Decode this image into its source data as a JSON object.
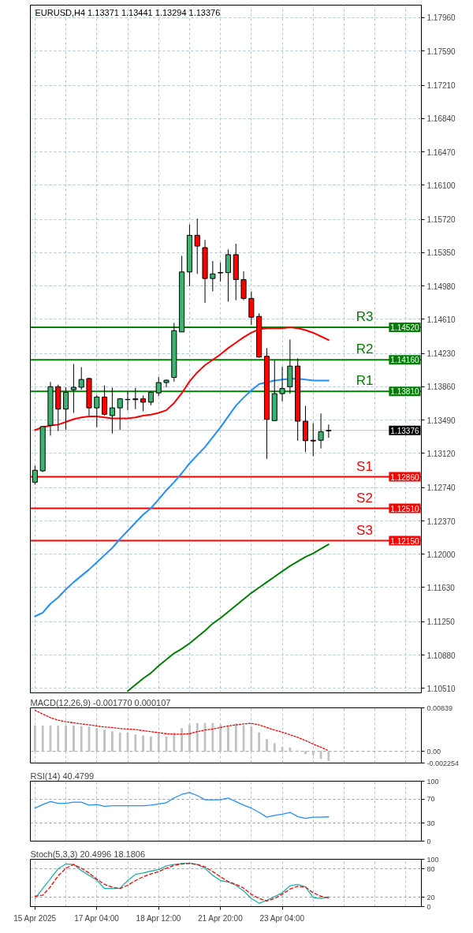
{
  "chart_data": [
    {
      "type": "candlestick",
      "title": "EURUSD,H4 1.13371 1.13441 1.13294 1.13376",
      "categories": [
        null,
        null,
        null,
        null,
        null,
        null,
        null,
        null,
        null,
        null,
        null,
        null,
        null,
        null,
        null,
        null,
        null,
        null,
        null,
        null,
        null,
        null,
        null,
        null,
        null,
        null,
        null,
        null,
        null,
        null,
        null,
        null,
        null,
        null,
        null,
        null,
        null,
        null,
        null
      ],
      "ohlc": [
        [
          1.128,
          1.12983,
          1.12774,
          1.12933
        ],
        [
          1.12926,
          1.13426,
          1.12912,
          1.13418
        ],
        [
          1.13432,
          1.13913,
          1.13317,
          1.13861
        ],
        [
          1.13861,
          1.13884,
          1.13369,
          1.13612
        ],
        [
          1.13612,
          1.13855,
          1.13383,
          1.13798
        ],
        [
          1.13827,
          1.14113,
          1.1357,
          1.13855
        ],
        [
          1.13855,
          1.14078,
          1.13827,
          1.13941
        ],
        [
          1.13952,
          1.1396,
          1.1354,
          1.13626
        ],
        [
          1.13626,
          1.13769,
          1.13412,
          1.13746
        ],
        [
          1.13746,
          1.13876,
          1.1354,
          1.13555
        ],
        [
          1.1354,
          1.1385,
          1.13341,
          1.13626
        ],
        [
          1.13626,
          1.13735,
          1.13383,
          1.13726
        ],
        [
          1.13717,
          1.13812,
          1.13598,
          1.1372
        ],
        [
          1.13726,
          1.13847,
          1.13612,
          1.13717
        ],
        [
          1.13726,
          1.13763,
          1.13589,
          1.13689
        ],
        [
          1.13689,
          1.13812,
          1.13655,
          1.13798
        ],
        [
          1.13792,
          1.1397,
          1.13755,
          1.13907
        ],
        [
          1.13907,
          1.13941,
          1.13855,
          1.13933
        ],
        [
          1.13964,
          1.1457,
          1.13918,
          1.14484
        ],
        [
          1.1447,
          1.15314,
          1.14467,
          1.15136
        ],
        [
          1.15136,
          1.15663,
          1.14977,
          1.15543
        ],
        [
          1.15543,
          1.15728,
          1.15114,
          1.15423
        ],
        [
          1.15406,
          1.15492,
          1.14793,
          1.15063
        ],
        [
          1.15063,
          1.15257,
          1.14919,
          1.15114
        ],
        [
          1.15125,
          1.15242,
          1.15028,
          1.1513
        ],
        [
          1.15128,
          1.15385,
          1.14807,
          1.15328
        ],
        [
          1.15328,
          1.15449,
          1.14822,
          1.15051
        ],
        [
          1.15051,
          1.15142,
          1.14822,
          1.14842
        ],
        [
          1.14842,
          1.14919,
          1.14548,
          1.14633
        ],
        [
          1.14642,
          1.14676,
          1.14184,
          1.1419
        ],
        [
          1.14199,
          1.1429,
          1.1306,
          1.13498
        ],
        [
          1.13484,
          1.14156,
          1.13478,
          1.13784
        ],
        [
          1.13784,
          1.14084,
          1.13698,
          1.13841
        ],
        [
          1.13861,
          1.14385,
          1.13784,
          1.1409
        ],
        [
          1.1409,
          1.14176,
          1.13261,
          1.13478
        ],
        [
          1.13478,
          1.13649,
          1.13135,
          1.13261
        ],
        [
          1.13266,
          1.13455,
          1.13089,
          1.13258
        ],
        [
          1.13266,
          1.13564,
          1.13175,
          1.13361
        ],
        [
          1.13371,
          1.13441,
          1.13294,
          1.13376
        ]
      ],
      "colors": [
        "#3cb371",
        "#3cb371",
        "#3cb371",
        "#ff0000",
        "#3cb371",
        "#3cb371",
        "#3cb371",
        "#ff0000",
        "#3cb371",
        "#ff0000",
        "#3cb371",
        "#3cb371",
        "#3cb371",
        "#ff0000",
        "#ff0000",
        "#3cb371",
        "#3cb371",
        "#3cb371",
        "#3cb371",
        "#3cb371",
        "#3cb371",
        "#ff0000",
        "#ff0000",
        "#3cb371",
        "#3cb371",
        "#3cb371",
        "#ff0000",
        "#ff0000",
        "#ff0000",
        "#ff0000",
        "#ff0000",
        "#3cb371",
        "#3cb371",
        "#3cb371",
        "#ff0000",
        "#ff0000",
        "#ff0000",
        "#3cb371",
        "#3cb371"
      ],
      "series": [
        {
          "type": "line",
          "color": "#ff0000",
          "values": [
            1.1338,
            1.1341,
            1.1343,
            1.1344,
            1.1347,
            1.135,
            1.1352,
            1.1353,
            1.1353,
            1.1352,
            1.1351,
            1.1351,
            1.1351,
            1.1352,
            1.1354,
            1.1355,
            1.1357,
            1.136,
            1.1368,
            1.1379,
            1.1392,
            1.1402,
            1.141,
            1.1416,
            1.1422,
            1.1429,
            1.1435,
            1.1441,
            1.1446,
            1.145,
            1.1451,
            1.1451,
            1.1451,
            1.1452,
            1.1451,
            1.1449,
            1.1446,
            1.1442,
            1.1438
          ]
        },
        {
          "type": "line",
          "color": "#1e90ff",
          "values": [
            1.1131,
            1.1135,
            1.1145,
            1.1152,
            1.1161,
            1.1169,
            1.1176,
            1.1183,
            1.1191,
            1.1199,
            1.1207,
            1.1217,
            1.1226,
            1.1235,
            1.1244,
            1.1251,
            1.1261,
            1.1271,
            1.128,
            1.129,
            1.1301,
            1.131,
            1.1319,
            1.133,
            1.1341,
            1.1353,
            1.1365,
            1.1374,
            1.1382,
            1.1389,
            1.1391,
            1.1393,
            1.1394,
            1.1395,
            1.1395,
            1.1394,
            1.1393,
            1.1393,
            1.1393
          ]
        },
        {
          "type": "line",
          "color": "#008000",
          "values": [
            null,
            null,
            null,
            null,
            null,
            null,
            null,
            null,
            null,
            null,
            null,
            null,
            1.1048,
            1.1055,
            1.1062,
            1.1068,
            1.1076,
            1.1083,
            1.109,
            1.1095,
            1.1101,
            1.1108,
            1.1115,
            1.1123,
            1.1129,
            1.1136,
            1.1143,
            1.115,
            1.1157,
            1.1163,
            1.1169,
            1.1175,
            1.1181,
            1.1187,
            1.1192,
            1.1197,
            1.1201,
            1.1206,
            1.1211
          ]
        }
      ],
      "ylim": [
        1.1046,
        1.181
      ],
      "yticks": [
        {
          "value": 1.1051,
          "label": "1.10510"
        },
        {
          "value": 1.1088,
          "label": "1.10880"
        },
        {
          "value": 1.1125,
          "label": "1.11250"
        },
        {
          "value": 1.1163,
          "label": "1.11630"
        },
        {
          "value": 1.12,
          "label": "1.12000"
        },
        {
          "value": 1.1237,
          "label": "1.12370"
        },
        {
          "value": 1.1274,
          "label": "1.12740"
        },
        {
          "value": 1.1312,
          "label": "1.13120"
        },
        {
          "value": 1.1349,
          "label": "1.13490"
        },
        {
          "value": 1.1386,
          "label": "1.13860"
        },
        {
          "value": 1.1423,
          "label": "1.14230"
        },
        {
          "value": 1.1461,
          "label": "1.14610"
        },
        {
          "value": 1.1498,
          "label": "1.14980"
        },
        {
          "value": 1.1535,
          "label": "1.15350"
        },
        {
          "value": 1.1572,
          "label": "1.15720"
        },
        {
          "value": 1.161,
          "label": "1.16100"
        },
        {
          "value": 1.1647,
          "label": "1.16470"
        },
        {
          "value": 1.1684,
          "label": "1.16840"
        },
        {
          "value": 1.1721,
          "label": "1.17210"
        },
        {
          "value": 1.1759,
          "label": "1.17590"
        },
        {
          "value": 1.1796,
          "label": "1.17960"
        }
      ],
      "ref_lines": [
        {
          "axis": "y",
          "value": 1.1452,
          "label": "R3",
          "color": "#008000"
        },
        {
          "axis": "y",
          "value": 1.1416,
          "label": "R2",
          "color": "#008000"
        },
        {
          "axis": "y",
          "value": 1.1381,
          "label": "R1",
          "color": "#008000"
        },
        {
          "axis": "y",
          "value": 1.13376,
          "color": "#b0c4de"
        },
        {
          "axis": "y",
          "value": 1.1286,
          "label": "S1",
          "color": "#ff0000"
        },
        {
          "axis": "y",
          "value": 1.1251,
          "label": "S2",
          "color": "#ff0000"
        },
        {
          "axis": "y",
          "value": 1.1215,
          "label": "S3",
          "color": "#ff0000"
        }
      ],
      "annotations": [
        {
          "text": "1.14520",
          "y": 1.1452
        },
        {
          "text": "1.14160",
          "y": 1.1416
        },
        {
          "text": "1.13810",
          "y": 1.1381
        },
        {
          "text": "1.13376",
          "y": 1.13376
        },
        {
          "text": "1.12860",
          "y": 1.1286
        },
        {
          "text": "1.12510",
          "y": 1.1251
        },
        {
          "text": "1.12150",
          "y": 1.1215
        }
      ],
      "grid": true,
      "tick_labels": "y"
    },
    {
      "type": "bar",
      "title": "MACD(12,26,9) -0.001770 0.000107",
      "categories": [
        null,
        null,
        null,
        null,
        null,
        null,
        null,
        null,
        null,
        null,
        null,
        null,
        null,
        null,
        null,
        null,
        null,
        null,
        null,
        null,
        null,
        null,
        null,
        null,
        null,
        null,
        null,
        null,
        null,
        null,
        null,
        null,
        null,
        null,
        null,
        null,
        null,
        null,
        null
      ],
      "series": [
        {
          "type": "bar",
          "color": "#c0c0c0",
          "values": [
            0.0049,
            0.0049,
            0.0049,
            0.0049,
            0.0049,
            0.0049,
            0.0048,
            0.0047,
            0.0044,
            0.0041,
            0.0038,
            0.0036,
            0.0036,
            0.0032,
            0.003,
            0.0028,
            0.0034,
            0.0028,
            0.0035,
            0.0044,
            0.0051,
            0.0054,
            0.0054,
            0.0054,
            0.0051,
            0.0049,
            0.0053,
            0.0049,
            0.0048,
            0.0036,
            0.0023,
            0.0015,
            0.0008,
            0.0007,
            0.0001,
            -0.0005,
            -0.0007,
            -0.0014,
            -0.00177
          ]
        },
        {
          "type": "line",
          "color": "#ff0000",
          "line_style": "dotted",
          "values": [
            0.0079,
            0.0072,
            0.0065,
            0.006,
            0.0057,
            0.0055,
            0.0053,
            0.0051,
            0.0049,
            0.0047,
            0.0046,
            0.0044,
            0.0043,
            0.0042,
            0.004,
            0.0038,
            0.0036,
            0.0034,
            0.0033,
            0.0033,
            0.0034,
            0.0038,
            0.0041,
            0.0043,
            0.0046,
            0.0049,
            0.0051,
            0.0053,
            0.0054,
            0.0051,
            0.0046,
            0.0041,
            0.0037,
            0.0032,
            0.0027,
            0.0021,
            0.0014,
            0.0008,
            0.000107
          ]
        }
      ],
      "ylim": [
        -0.002254,
        0.00839
      ],
      "yticks": [
        -0.002254,
        {
          "value": 0,
          "label": "0.00"
        },
        0.00839
      ],
      "ref_lines": [
        {
          "axis": "y",
          "value": 0,
          "color": "#a0a0a0",
          "line_style": "dashed"
        }
      ],
      "grid": "x",
      "tick_labels": "y"
    },
    {
      "type": "line",
      "title": "RSI(14) 40.4799",
      "categories": [
        null,
        null,
        null,
        null,
        null,
        null,
        null,
        null,
        null,
        null,
        null,
        null,
        null,
        null,
        null,
        null,
        null,
        null,
        null,
        null,
        null,
        null,
        null,
        null,
        null,
        null,
        null,
        null,
        null,
        null,
        null,
        null,
        null,
        null,
        null,
        null,
        null,
        null,
        null
      ],
      "series": [
        {
          "color": "#1e90ff",
          "values": [
            55,
            61,
            66,
            63,
            63,
            65,
            65,
            60,
            61,
            58,
            59,
            59,
            59,
            59,
            59,
            60,
            62,
            64,
            72,
            78,
            81,
            76,
            69,
            69,
            69,
            72,
            66,
            60,
            55,
            48,
            40,
            43,
            45,
            48,
            41,
            38,
            40,
            40,
            40.4799
          ]
        }
      ],
      "ylim": [
        0,
        100
      ],
      "yticks": [
        0,
        30,
        70,
        100
      ],
      "grid": true,
      "tick_labels": "y"
    },
    {
      "type": "line",
      "title": "Stoch(5,3,3) 20.4996 18.1806",
      "categories": [
        "15 Apr 2025",
        null,
        null,
        null,
        null,
        null,
        null,
        null,
        "17 Apr 04:00",
        null,
        null,
        null,
        null,
        null,
        null,
        null,
        "18 Apr 12:00",
        null,
        null,
        null,
        null,
        null,
        null,
        null,
        "21 Apr 20:00",
        null,
        null,
        null,
        null,
        null,
        null,
        null,
        "23 Apr 04:00",
        null,
        null,
        null,
        null,
        null,
        null
      ],
      "series": [
        {
          "color": "#20b2aa",
          "values": [
            17,
            38,
            59,
            80,
            90,
            89,
            76,
            66,
            56,
            38,
            38,
            39,
            55,
            68,
            71,
            75,
            78,
            86,
            89,
            91,
            92,
            89,
            81,
            66,
            55,
            52,
            45,
            33,
            17,
            7,
            13,
            21,
            29,
            44,
            47,
            42,
            19,
            17,
            20.4996
          ]
        },
        {
          "color": "#ff0000",
          "line_style": "dashed",
          "values": [
            22,
            24,
            42,
            65,
            81,
            89,
            81,
            71,
            58,
            47,
            41,
            38,
            45,
            55,
            63,
            69,
            74,
            81,
            87,
            90,
            91,
            89,
            84,
            74,
            63,
            53,
            47,
            39,
            26,
            17,
            12,
            17,
            26,
            37,
            43,
            41,
            29,
            22,
            18.1806
          ]
        }
      ],
      "ylim": [
        0,
        100
      ],
      "yticks": [
        0,
        20,
        80,
        100
      ],
      "grid": true
    }
  ]
}
